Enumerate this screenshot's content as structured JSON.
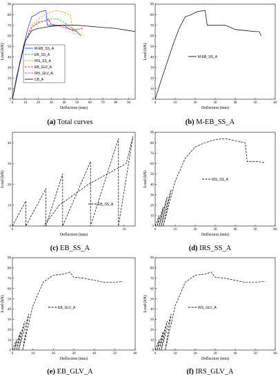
{
  "figure": {
    "captions": [
      {
        "id": "a",
        "letter": "(a)",
        "text": "Total curves"
      },
      {
        "id": "b",
        "letter": "(b)",
        "text": "M-EB_SS_A"
      },
      {
        "id": "c",
        "letter": "(c)",
        "text": "EB_SS_A"
      },
      {
        "id": "d",
        "letter": "(d)",
        "text": "IRS_SS_A"
      },
      {
        "id": "e",
        "letter": "(e)",
        "text": "EB_GLV_A"
      },
      {
        "id": "f",
        "letter": "(f)",
        "text": "IRS_GLV_A"
      }
    ]
  },
  "chart_data": [
    {
      "id": "a",
      "type": "line",
      "xlabel": "Deflection (mm)",
      "ylabel": "Load (kN)",
      "xlim": [
        0,
        95
      ],
      "ylim": [
        0,
        90
      ],
      "xticks": [
        0,
        10,
        20,
        30,
        40,
        50,
        60,
        70,
        80,
        90
      ],
      "yticks": [
        0,
        10,
        20,
        30,
        40,
        50,
        60,
        70,
        80,
        90
      ],
      "legend_position": "center-left",
      "series": [
        {
          "name": "M-EB_SS_A",
          "color": "#2b3fd6",
          "dash": "solid",
          "x": [
            0,
            3,
            7,
            12,
            15,
            18,
            22,
            26,
            27,
            35,
            40,
            45,
            50,
            53
          ],
          "y": [
            0,
            20,
            42,
            67,
            78,
            80,
            83,
            84,
            70,
            70,
            70,
            66,
            64,
            60
          ]
        },
        {
          "name": "EB_SS_A",
          "color": "#2ab02a",
          "dash": "dash",
          "x": [
            0,
            5,
            10,
            15,
            20,
            25,
            30,
            35,
            40,
            45,
            50
          ],
          "y": [
            0,
            30,
            55,
            68,
            72,
            74,
            76,
            76,
            73,
            68,
            65
          ]
        },
        {
          "name": "IRS_SS_A",
          "color": "#f59a23",
          "dash": "dash",
          "x": [
            0,
            5,
            10,
            15,
            20,
            25,
            30,
            35,
            40,
            45,
            47,
            50,
            55
          ],
          "y": [
            0,
            30,
            55,
            70,
            76,
            80,
            83,
            84,
            82,
            80,
            62,
            62,
            61
          ]
        },
        {
          "name": "EB_GLV_A",
          "color": "#e8262a",
          "dash": "dash",
          "x": [
            0,
            5,
            10,
            15,
            20,
            25,
            28,
            30,
            35,
            40,
            45,
            50,
            54
          ],
          "y": [
            0,
            30,
            55,
            68,
            73,
            74,
            76,
            71,
            70,
            68,
            66,
            66,
            67
          ]
        },
        {
          "name": "IRS_GLV_A",
          "color": "#e034d0",
          "dash": "dash",
          "x": [
            0,
            5,
            10,
            15,
            20,
            25,
            27,
            30,
            35,
            40,
            45,
            50,
            55
          ],
          "y": [
            0,
            30,
            55,
            68,
            73,
            74,
            76,
            71,
            70,
            68,
            66,
            66,
            67
          ]
        },
        {
          "name": "CB_A",
          "color": "#111111",
          "dash": "solid",
          "x": [
            0,
            5,
            10,
            15,
            20,
            25,
            30,
            40,
            50,
            60,
            70,
            80,
            90,
            95
          ],
          "y": [
            0,
            30,
            55,
            65,
            67,
            68,
            69,
            70,
            70,
            69,
            68,
            67,
            65,
            64
          ]
        }
      ]
    },
    {
      "id": "b",
      "type": "line",
      "xlabel": "Deflection (mm)",
      "ylabel": "Load (kN)",
      "xlim": [
        0,
        60
      ],
      "ylim": [
        0,
        90
      ],
      "xticks": [
        0,
        10,
        20,
        30,
        40,
        50,
        60
      ],
      "yticks": [
        0,
        10,
        20,
        30,
        40,
        50,
        60,
        70,
        80,
        90
      ],
      "legend_position": "center",
      "series": [
        {
          "name": "M-EB_SS_A",
          "color": "#111111",
          "dash": "solid",
          "x": [
            0,
            3,
            6,
            9,
            12,
            15,
            18,
            21,
            25,
            26,
            30,
            35,
            40,
            45,
            50,
            52,
            53
          ],
          "y": [
            0,
            18,
            35,
            52,
            67,
            78,
            80,
            83,
            84,
            70,
            70,
            70,
            66,
            65,
            64,
            64,
            60
          ]
        }
      ]
    },
    {
      "id": "c",
      "type": "line",
      "xlabel": "Deflection (mm)",
      "ylabel": "Load (kN)",
      "xlim": [
        0,
        11
      ],
      "ylim": [
        0,
        45
      ],
      "xticks": [
        0,
        10
      ],
      "yticks": [
        0,
        10,
        20,
        30,
        40
      ],
      "legend_position": "center-right",
      "series": [
        {
          "name": "EB_SS_A",
          "color": "#111111",
          "dash": "dash",
          "x": [
            0,
            1.2,
            1.2,
            3,
            3,
            4.5,
            4.5,
            7,
            7,
            9.5,
            9.5,
            10.8,
            10.2,
            6.8,
            4.2,
            2.8
          ],
          "y": [
            0,
            12,
            0,
            18,
            0,
            25,
            0,
            31,
            0,
            42,
            0,
            43,
            30,
            20,
            10,
            0
          ]
        }
      ]
    },
    {
      "id": "d",
      "type": "line",
      "xlabel": "Deflection (mm)",
      "ylabel": "Load (kN)",
      "xlim": [
        0,
        60
      ],
      "ylim": [
        0,
        90
      ],
      "xticks": [
        0,
        10,
        20,
        30,
        40,
        50,
        60
      ],
      "yticks": [
        0,
        10,
        20,
        30,
        40,
        50,
        60,
        70,
        80,
        90
      ],
      "legend_position": "center",
      "series": [
        {
          "name": "IRS_SS_A",
          "color": "#111111",
          "dash": "dash",
          "x": [
            0,
            2,
            1,
            4,
            2,
            6,
            3,
            8,
            4,
            10,
            15,
            20,
            25,
            30,
            35,
            40,
            45,
            46,
            50,
            55
          ],
          "y": [
            0,
            10,
            0,
            18,
            0,
            28,
            0,
            35,
            0,
            43,
            65,
            76,
            80,
            83,
            84,
            82,
            80,
            62,
            62,
            61
          ]
        }
      ]
    },
    {
      "id": "e",
      "type": "line",
      "xlabel": "Deflection (mm)",
      "ylabel": "Load (kN)",
      "xlim": [
        0,
        60
      ],
      "ylim": [
        0,
        90
      ],
      "xticks": [
        0,
        10,
        20,
        30,
        40,
        50,
        60
      ],
      "yticks": [
        0,
        10,
        20,
        30,
        40,
        50,
        60,
        70,
        80,
        90
      ],
      "legend_position": "center",
      "series": [
        {
          "name": "EB_GLV_A",
          "color": "#111111",
          "dash": "dash",
          "x": [
            0,
            2,
            1,
            4,
            2,
            6,
            3,
            8,
            5,
            10,
            15,
            20,
            25,
            28,
            30,
            35,
            40,
            45,
            50,
            54
          ],
          "y": [
            0,
            10,
            0,
            18,
            0,
            28,
            0,
            35,
            0,
            43,
            66,
            73,
            74,
            76,
            71,
            70,
            68,
            66,
            66,
            67
          ]
        }
      ]
    },
    {
      "id": "f",
      "type": "line",
      "xlabel": "Deflection (mm)",
      "ylabel": "Load (kN)",
      "xlim": [
        0,
        60
      ],
      "ylim": [
        0,
        90
      ],
      "xticks": [
        0,
        10,
        20,
        30,
        40,
        50,
        60
      ],
      "yticks": [
        0,
        10,
        20,
        30,
        40,
        50,
        60,
        70,
        80,
        90
      ],
      "legend_position": "center",
      "series": [
        {
          "name": "IRS_GLV_A",
          "color": "#111111",
          "dash": "dash",
          "x": [
            0,
            2,
            1,
            4,
            2,
            6,
            3,
            8,
            5,
            10,
            15,
            20,
            25,
            28,
            30,
            35,
            40,
            45,
            50,
            55
          ],
          "y": [
            0,
            10,
            0,
            18,
            0,
            28,
            0,
            35,
            0,
            43,
            66,
            73,
            74,
            76,
            71,
            70,
            68,
            66,
            66,
            67
          ]
        }
      ]
    }
  ]
}
